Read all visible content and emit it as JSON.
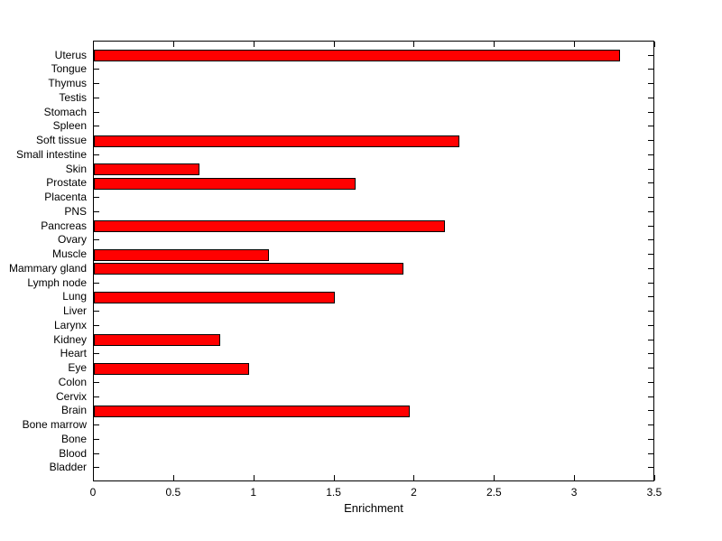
{
  "chart_data": {
    "type": "bar",
    "orientation": "horizontal",
    "title": "",
    "xlabel": "Enrichment",
    "ylabel": "",
    "xlim": [
      0,
      3.5
    ],
    "xticks": [
      0,
      0.5,
      1,
      1.5,
      2,
      2.5,
      3,
      3.5
    ],
    "xtick_labels": [
      "0",
      "0.5",
      "1",
      "1.5",
      "2",
      "2.5",
      "3",
      "3.5"
    ],
    "categories": [
      "Uterus",
      "Tongue",
      "Thymus",
      "Testis",
      "Stomach",
      "Spleen",
      "Soft tissue",
      "Small intestine",
      "Skin",
      "Prostate",
      "Placenta",
      "PNS",
      "Pancreas",
      "Ovary",
      "Muscle",
      "Mammary gland",
      "Lymph node",
      "Lung",
      "Liver",
      "Larynx",
      "Kidney",
      "Heart",
      "Eye",
      "Colon",
      "Cervix",
      "Brain",
      "Bone marrow",
      "Bone",
      "Blood",
      "Bladder"
    ],
    "values": [
      3.28,
      0,
      0,
      0,
      0,
      0,
      2.28,
      0,
      0.66,
      1.63,
      0,
      0,
      2.19,
      0,
      1.09,
      1.93,
      0,
      1.5,
      0,
      0,
      0.79,
      0,
      0.97,
      0,
      0,
      1.97,
      0,
      0,
      0,
      0
    ],
    "bar_color": "#FF0000",
    "bar_edge_color": "#000000",
    "axis_color": "#000000",
    "background_color": "#FFFFFF",
    "grid": false,
    "legend": null
  }
}
